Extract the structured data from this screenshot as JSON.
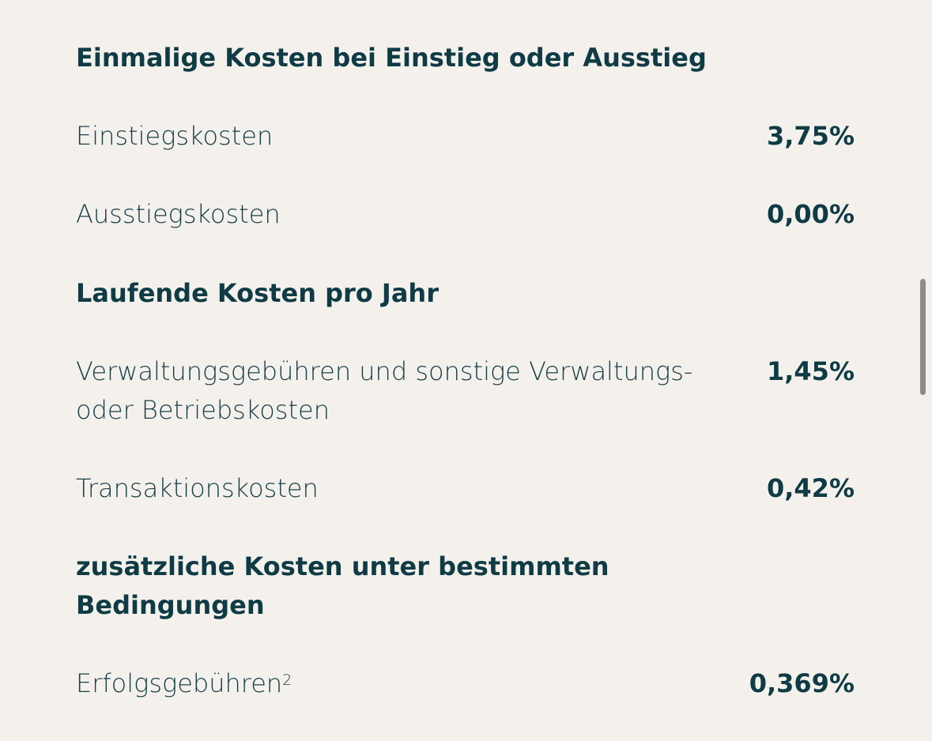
{
  "sections": [
    {
      "heading": "Einmalige Kosten bei Einstieg oder Ausstieg",
      "rows": [
        {
          "label": "Einstiegskosten",
          "value": "3,75%"
        },
        {
          "label": "Ausstiegskosten",
          "value": "0,00%"
        }
      ]
    },
    {
      "heading": "Laufende Kosten pro Jahr",
      "rows": [
        {
          "label": "Verwaltungsgebühren und sonstige Verwaltungs- oder Betriebskosten",
          "value": "1,45%"
        },
        {
          "label": "Transaktionskosten",
          "value": "0,42%"
        }
      ]
    },
    {
      "heading": "zusätzliche Kosten unter bestimmten Bedingungen",
      "rows": [
        {
          "label": "Erfolgsgebühren",
          "footnote": "2",
          "value": "0,369%"
        }
      ]
    }
  ]
}
